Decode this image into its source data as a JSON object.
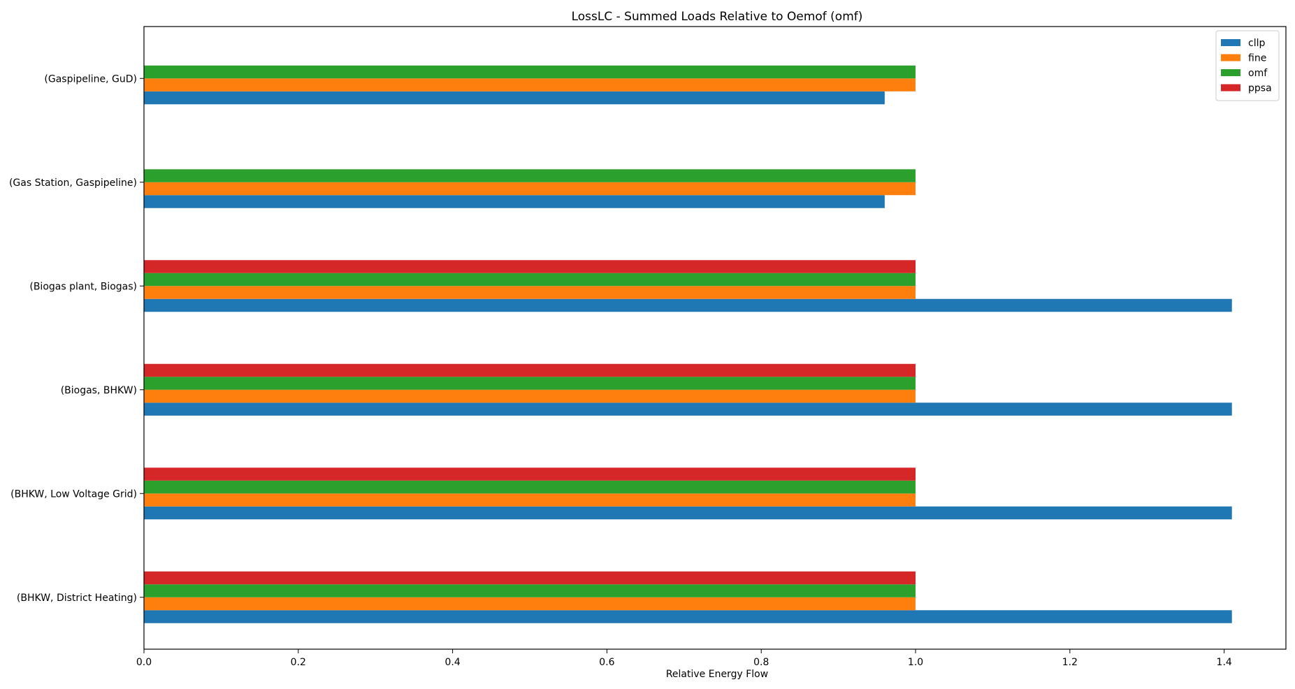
{
  "chart_data": {
    "type": "bar",
    "orientation": "horizontal",
    "title": "LossLC -  Summed Loads Relative to Oemof (omf)",
    "xlabel": "Relative Energy Flow",
    "ylabel": "",
    "xlim": [
      0,
      1.48
    ],
    "xticks": [
      0,
      0.2,
      0.4,
      0.6,
      0.8,
      1.0,
      1.2,
      1.4
    ],
    "xtick_labels": [
      "0.0",
      "0.2",
      "0.4",
      "0.6",
      "0.8",
      "1.0",
      "1.2",
      "1.4"
    ],
    "grid": false,
    "legend_position": "top-right",
    "categories": [
      "(BHKW, District Heating)",
      "(BHKW, Low Voltage Grid)",
      "(Biogas, BHKW)",
      "(Biogas plant, Biogas)",
      "(Gas Station, Gaspipeline)",
      "(Gaspipeline, GuD)"
    ],
    "series": [
      {
        "name": "cllp",
        "color": "#1f77b4",
        "values": [
          1.41,
          1.41,
          1.41,
          1.41,
          0.96,
          0.96
        ]
      },
      {
        "name": "fine",
        "color": "#ff7f0e",
        "values": [
          1.0,
          1.0,
          1.0,
          1.0,
          1.0,
          1.0
        ]
      },
      {
        "name": "omf",
        "color": "#2ca02c",
        "values": [
          1.0,
          1.0,
          1.0,
          1.0,
          1.0,
          1.0
        ]
      },
      {
        "name": "ppsa",
        "color": "#d62728",
        "values": [
          1.0,
          1.0,
          1.0,
          1.0,
          null,
          null
        ]
      }
    ]
  }
}
